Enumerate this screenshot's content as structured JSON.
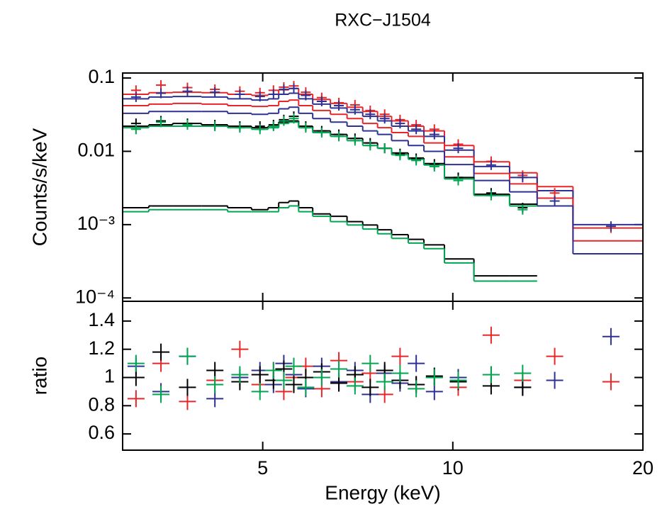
{
  "chart_data": {
    "type": "spectrum",
    "title": "RXC−J1504",
    "x_label": "Energy (keV)",
    "log_x": true,
    "xlim": [
      3,
      20
    ],
    "xticks": [
      5,
      10,
      20
    ],
    "bins": [
      3.0,
      3.3,
      3.6,
      4.0,
      4.4,
      4.8,
      5.1,
      5.3,
      5.5,
      5.7,
      6.0,
      6.4,
      6.8,
      7.2,
      7.6,
      8.0,
      8.5,
      9.0,
      9.7,
      10.8,
      12.3,
      13.6,
      15.5,
      20.0
    ],
    "panels": [
      {
        "y_label": "Counts/s/keV",
        "log_y": true,
        "ylim": [
          9e-05,
          0.117
        ],
        "yticks": [
          0.1,
          0.01,
          {
            "value": 0.001,
            "label": "10⁻³"
          },
          {
            "value": 0.0001,
            "label": "10⁻⁴"
          }
        ],
        "models": [
          {
            "color": "#e8262a",
            "values": [
              0.06,
              0.063,
              0.064,
              0.063,
              0.06,
              0.058,
              0.06,
              0.069,
              0.072,
              0.06,
              0.051,
              0.045,
              0.04,
              0.035,
              0.03,
              0.026,
              0.022,
              0.019,
              0.012,
              0.0072,
              0.0051,
              0.0033,
              0.0009
            ]
          },
          {
            "color": "#2e3192",
            "values": [
              0.052,
              0.055,
              0.056,
              0.055,
              0.052,
              0.05,
              0.052,
              0.06,
              0.062,
              0.052,
              0.044,
              0.039,
              0.034,
              0.03,
              0.026,
              0.022,
              0.019,
              0.016,
              0.0104,
              0.0062,
              0.0044,
              0.0029,
              0.001
            ]
          },
          {
            "color": "#e8262a",
            "values": [
              0.042,
              0.044,
              0.045,
              0.044,
              0.042,
              0.041,
              0.042,
              0.048,
              0.05,
              0.042,
              0.036,
              0.032,
              0.028,
              0.024,
              0.021,
              0.018,
              0.016,
              0.013,
              0.0084,
              0.005,
              0.0036,
              0.0023,
              0.0006
            ]
          },
          {
            "color": "#2e3192",
            "values": [
              0.033,
              0.035,
              0.035,
              0.035,
              0.033,
              0.032,
              0.033,
              0.038,
              0.04,
              0.033,
              0.028,
              0.025,
              0.022,
              0.019,
              0.017,
              0.014,
              0.012,
              0.01,
              0.0066,
              0.004,
              0.0028,
              0.0018,
              0.0004
            ]
          },
          {
            "color": "#000000",
            "values": [
              0.022,
              0.023,
              0.024,
              0.023,
              0.022,
              0.021,
              0.022,
              0.025,
              0.026,
              0.022,
              0.019,
              0.017,
              0.015,
              0.013,
              0.011,
              0.0095,
              0.0081,
              0.0068,
              0.0044,
              0.0026,
              0.0019,
              null,
              null
            ]
          },
          {
            "color": "#00a651",
            "values": [
              0.021,
              0.022,
              0.022,
              0.022,
              0.021,
              0.02,
              0.021,
              0.024,
              0.025,
              0.021,
              0.018,
              0.016,
              0.014,
              0.012,
              0.011,
              0.009,
              0.0078,
              0.0065,
              0.0042,
              0.0025,
              0.0018,
              null,
              null
            ]
          },
          {
            "color": "#000000",
            "values": [
              0.0017,
              0.0018,
              0.0018,
              0.0018,
              0.0017,
              0.0016,
              0.0017,
              0.002,
              0.0021,
              0.0017,
              0.0014,
              0.0013,
              0.0011,
              0.00099,
              0.00085,
              0.00073,
              0.00063,
              0.00053,
              0.00034,
              0.0002,
              0.0002,
              null,
              null
            ]
          },
          {
            "color": "#00a651",
            "values": [
              0.0015,
              0.0016,
              0.0016,
              0.0016,
              0.0015,
              0.0015,
              0.0015,
              0.0017,
              0.0018,
              0.0015,
              0.0013,
              0.0011,
              0.00099,
              0.00087,
              0.00075,
              0.00065,
              0.00056,
              0.00047,
              0.0003,
              0.00017,
              0.00017,
              null,
              null
            ]
          }
        ],
        "data": [
          {
            "color": "#e8262a",
            "x": [
              3.15,
              3.45,
              3.8,
              4.2,
              4.6,
              4.95,
              5.2,
              5.4,
              5.6,
              5.85,
              6.2,
              6.6,
              7.0,
              7.4,
              7.8,
              8.25,
              8.75,
              9.35,
              10.2,
              11.5,
              12.9,
              14.5,
              17.8
            ],
            "values": [
              0.068,
              0.08,
              0.074,
              0.07,
              0.066,
              0.063,
              0.068,
              0.075,
              0.078,
              0.064,
              0.054,
              0.046,
              0.043,
              0.036,
              0.032,
              0.027,
              0.023,
              0.02,
              0.0125,
              0.0073,
              0.0047,
              0.0027,
              0.0009
            ]
          },
          {
            "color": "#2e3192",
            "x": [
              3.15,
              3.45,
              3.8,
              4.2,
              4.6,
              4.95,
              5.2,
              5.4,
              5.6,
              5.85,
              6.2,
              6.6,
              7.0,
              7.4,
              7.8,
              8.25,
              8.75,
              9.35,
              10.2,
              11.5,
              12.9,
              14.5,
              17.8
            ],
            "values": [
              0.055,
              0.062,
              0.066,
              0.064,
              0.06,
              0.056,
              0.06,
              0.07,
              0.072,
              0.058,
              0.048,
              0.042,
              0.037,
              0.032,
              0.028,
              0.024,
              0.02,
              0.017,
              0.011,
              0.0065,
              0.0044,
              0.0021,
              0.00095
            ]
          },
          {
            "color": "#000000",
            "x": [
              3.15,
              3.45,
              3.8,
              4.2,
              4.6,
              4.95,
              5.2,
              5.4,
              5.6,
              5.85,
              6.2,
              6.6,
              7.0,
              7.4,
              7.8,
              8.25,
              8.75,
              9.35,
              10.2,
              11.5,
              12.9
            ],
            "values": [
              0.024,
              0.026,
              0.024,
              0.023,
              0.022,
              0.022,
              0.023,
              0.027,
              0.03,
              0.022,
              0.019,
              0.017,
              0.015,
              0.013,
              0.011,
              0.0093,
              0.008,
              0.0067,
              0.0044,
              0.0027,
              0.0017
            ]
          },
          {
            "color": "#00a651",
            "x": [
              3.15,
              3.45,
              3.8,
              4.2,
              4.6,
              4.95,
              5.2,
              5.4,
              5.6,
              5.85,
              6.2,
              6.6,
              7.0,
              7.4,
              7.8,
              8.25,
              8.75,
              9.35,
              10.2,
              11.5,
              12.9
            ],
            "values": [
              0.02,
              0.025,
              0.023,
              0.022,
              0.021,
              0.02,
              0.022,
              0.026,
              0.028,
              0.021,
              0.018,
              0.016,
              0.014,
              0.012,
              0.011,
              0.0088,
              0.0075,
              0.0062,
              0.004,
              0.0025,
              0.0016
            ]
          }
        ]
      },
      {
        "y_label": "ratio",
        "log_y": false,
        "ylim": [
          0.485,
          1.54
        ],
        "yticks": [
          0.6,
          0.8,
          1,
          1.2,
          1.4
        ],
        "data": [
          {
            "color": "#e8262a",
            "x": [
              3.15,
              3.45,
              3.8,
              4.2,
              4.6,
              4.95,
              5.2,
              5.4,
              5.6,
              5.85,
              6.2,
              6.6,
              7.0,
              7.4,
              7.8,
              8.25,
              8.75,
              9.35,
              10.2,
              11.5,
              12.9,
              14.5,
              17.8
            ],
            "values": [
              0.85,
              1.1,
              0.83,
              0.98,
              1.2,
              0.95,
              1.05,
              0.9,
              1.0,
              1.08,
              0.92,
              1.12,
              0.97,
              1.03,
              0.88,
              1.15,
              0.95,
              1.0,
              0.93,
              1.3,
              0.98,
              1.15,
              0.97
            ]
          },
          {
            "color": "#2e3192",
            "x": [
              3.15,
              3.45,
              3.8,
              4.2,
              4.6,
              4.95,
              5.2,
              5.4,
              5.6,
              5.85,
              6.2,
              6.6,
              7.0,
              7.4,
              7.8,
              8.25,
              8.75,
              9.35,
              10.2,
              11.5,
              12.9,
              14.5,
              17.8
            ],
            "values": [
              1.08,
              0.9,
              1.15,
              0.85,
              1.0,
              1.05,
              0.95,
              1.1,
              1.02,
              0.92,
              1.08,
              0.97,
              1.05,
              0.88,
              1.03,
              0.96,
              1.1,
              0.9,
              1.0,
              1.02,
              0.93,
              0.98,
              1.29
            ]
          },
          {
            "color": "#000000",
            "x": [
              3.15,
              3.45,
              3.8,
              4.2,
              4.6,
              4.95,
              5.2,
              5.4,
              5.6,
              5.85,
              6.2,
              6.6,
              7.0,
              7.4,
              7.8,
              8.25,
              8.75,
              9.35,
              10.2,
              11.5,
              12.9
            ],
            "values": [
              1.0,
              1.18,
              0.93,
              1.05,
              0.97,
              1.02,
              0.98,
              1.06,
              0.95,
              1.0,
              1.04,
              0.96,
              1.02,
              0.93,
              1.05,
              0.98,
              0.95,
              1.01,
              0.97,
              0.94,
              0.93
            ]
          },
          {
            "color": "#00a651",
            "x": [
              3.15,
              3.45,
              3.8,
              4.2,
              4.6,
              4.95,
              5.2,
              5.4,
              5.6,
              5.85,
              6.2,
              6.6,
              7.0,
              7.4,
              7.8,
              8.25,
              8.75,
              9.35,
              10.2,
              11.5,
              12.9
            ],
            "values": [
              1.1,
              0.88,
              1.15,
              0.95,
              1.02,
              0.9,
              1.05,
              0.98,
              1.08,
              0.93,
              1.0,
              1.06,
              0.94,
              1.1,
              0.97,
              1.03,
              0.92,
              1.0,
              0.98,
              1.02,
              1.03
            ]
          }
        ]
      }
    ]
  }
}
